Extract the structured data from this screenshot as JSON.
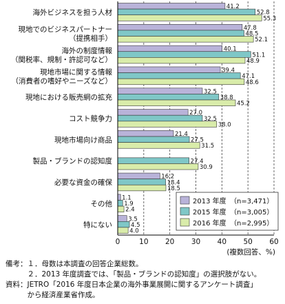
{
  "chart_data": {
    "type": "bar",
    "orientation": "horizontal",
    "categories": [
      [
        "海外ビジネスを担う人材"
      ],
      [
        "現地でのビジネスパートナー",
        "（提携相手）"
      ],
      [
        "海外の制度情報",
        "（関税率、規制・許認可など）"
      ],
      [
        "現地市場に関する情報",
        "（消費者の嗜好やニーズなど）"
      ],
      [
        "現地における販売網の拡充"
      ],
      [
        "コスト競争力"
      ],
      [
        "現地市場向け商品"
      ],
      [
        "製品・ブランドの認知度"
      ],
      [
        "必要な資金の確保"
      ],
      [
        "その他"
      ],
      [
        "特にない"
      ]
    ],
    "series": [
      {
        "name": "2013 年度",
        "n": "（n=3,471）",
        "color": "#b9b3d9",
        "values": [
          41.2,
          47.8,
          40.1,
          39.4,
          32.5,
          27.0,
          21.4,
          null,
          16.2,
          1.1,
          3.5
        ]
      },
      {
        "name": "2015 年度",
        "n": "（n=3,005）",
        "color": "#7fc7c7",
        "values": [
          52.8,
          48.5,
          51.1,
          47.1,
          38.8,
          32.5,
          27.5,
          27.4,
          18.4,
          1.9,
          4.5
        ]
      },
      {
        "name": "2016 年度",
        "n": "（n=2,995）",
        "color": "#d9ecaa",
        "values": [
          55.3,
          52.1,
          48.9,
          48.6,
          45.2,
          38.0,
          31.5,
          30.9,
          18.5,
          2.4,
          4.0
        ]
      }
    ],
    "value_labels": [
      [
        "41.2",
        "52.8",
        "55.3"
      ],
      [
        "47.8",
        "48.5",
        "52.1"
      ],
      [
        "40.1",
        "51.1",
        "48.9"
      ],
      [
        "39.4",
        "47.1",
        "48.6"
      ],
      [
        "32.5",
        "38.8",
        "45.2"
      ],
      [
        "27.0",
        "32.5",
        "38.0"
      ],
      [
        "21.4",
        "27.5",
        "31.5"
      ],
      [
        null,
        "27.4",
        "30.9"
      ],
      [
        "16.2",
        "18.4",
        "18.5"
      ],
      [
        "1.1",
        "1.9",
        "2.4"
      ],
      [
        "3.5",
        "4.5",
        "4.0"
      ]
    ],
    "xlim": [
      0,
      60
    ],
    "xticks": [
      "0",
      "10",
      "20",
      "30",
      "40",
      "50",
      "60"
    ],
    "xlabel": "(複数回答、%)",
    "gridlines": "dashed vertical",
    "legend_position": "bottom-right"
  },
  "notes": [
    "備考：１．母数は本調査の回答企業総数。",
    "　　　２．2013 年度調査では、「製品・ブランドの認知度」の選択肢がない。",
    "資料：JETRO「2016 年度日本企業の海外事業展開に関するアンケート調査」",
    "　　　から経済産業省作成。"
  ]
}
